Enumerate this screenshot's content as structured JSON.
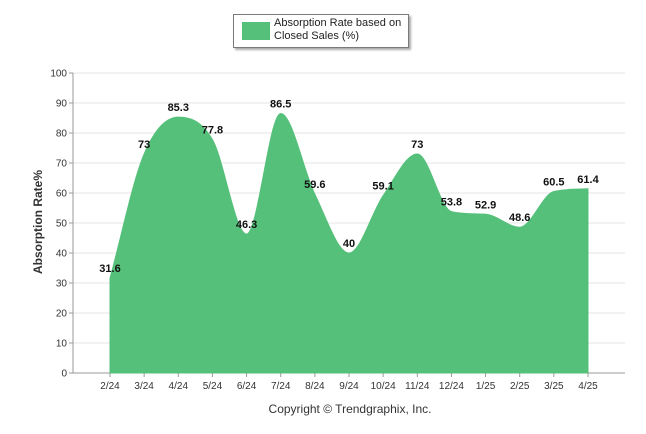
{
  "chart_data": {
    "type": "area",
    "categories": [
      "2/24",
      "3/24",
      "4/24",
      "5/24",
      "6/24",
      "7/24",
      "8/24",
      "9/24",
      "10/24",
      "11/24",
      "12/24",
      "1/25",
      "2/25",
      "3/25",
      "4/25"
    ],
    "series": [
      {
        "name": "Absorption Rate based on Closed Sales (%)",
        "values": [
          31.6,
          73,
          85.3,
          77.8,
          46.3,
          86.5,
          59.6,
          40,
          59.1,
          73,
          53.8,
          52.9,
          48.6,
          60.5,
          61.4
        ]
      }
    ],
    "ylabel": "Absorption Rate%",
    "xlabel": "",
    "ylim": [
      0,
      100
    ],
    "yticks": [
      0,
      10,
      20,
      30,
      40,
      50,
      60,
      70,
      80,
      90,
      100
    ],
    "grid": true,
    "legend": "top-center",
    "color": "#55c07a"
  },
  "legend_label": "Absorption Rate based on Closed Sales (%)",
  "copyright": "Copyright © Trendgraphix, Inc."
}
